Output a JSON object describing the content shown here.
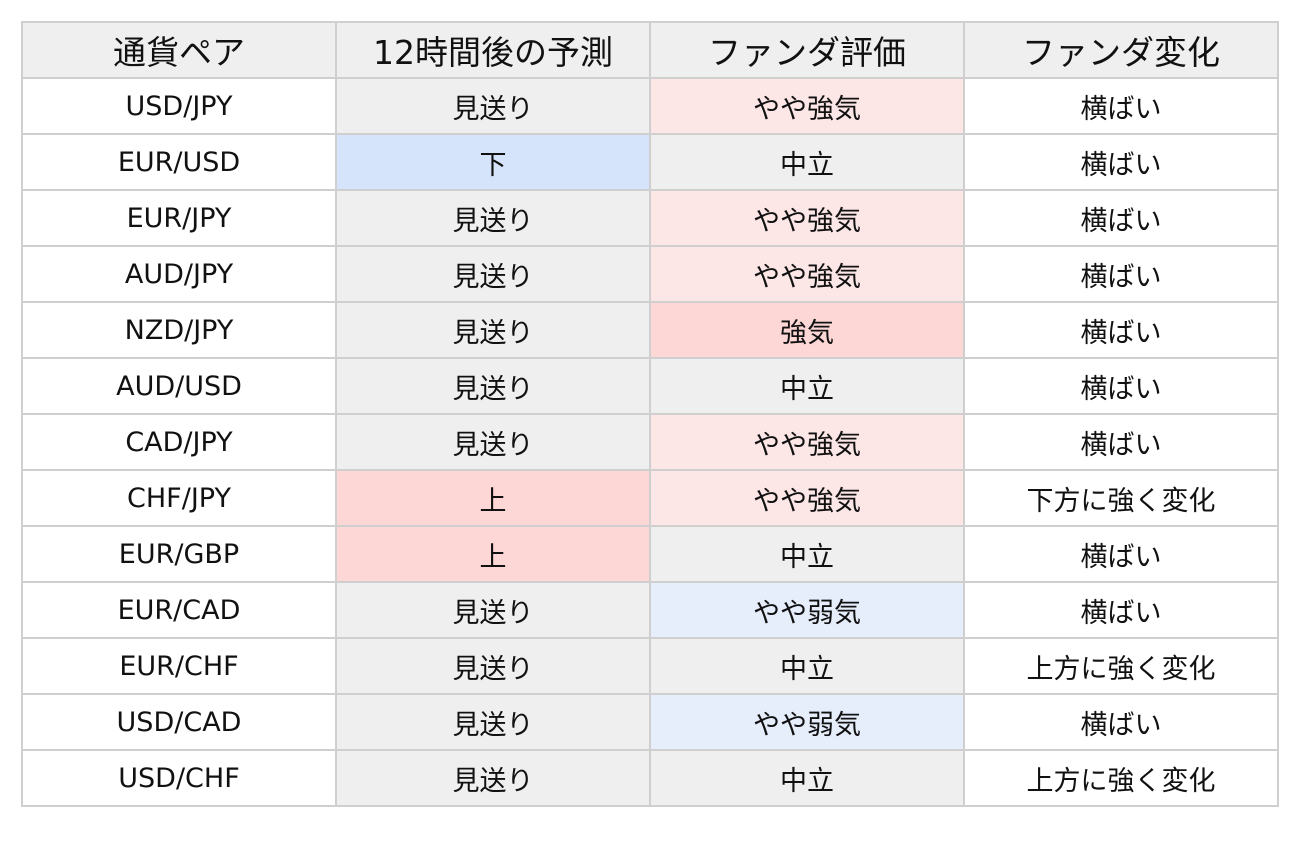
{
  "headers": [
    "通貨ペア",
    "12時間後の予測",
    "ファンダ評価",
    "ファンダ変化"
  ],
  "colors": {
    "header_bg": "#efefef",
    "pair_bg": "#ffffff",
    "change_bg": "#ffffff",
    "neutral_bg": "#efefef",
    "forecast": {
      "上": "#fdd6d6",
      "下": "#d6e4fb",
      "見送り": "#efefef"
    },
    "fundamental": {
      "強気": "#fdd6d6",
      "やや強気": "#fde6e6",
      "中立": "#efefef",
      "やや弱気": "#e6eefb"
    }
  },
  "rows": [
    {
      "pair": "USD/JPY",
      "forecast": "見送り",
      "fundamental": "やや強気",
      "change": "横ばい"
    },
    {
      "pair": "EUR/USD",
      "forecast": "下",
      "fundamental": "中立",
      "change": "横ばい"
    },
    {
      "pair": "EUR/JPY",
      "forecast": "見送り",
      "fundamental": "やや強気",
      "change": "横ばい"
    },
    {
      "pair": "AUD/JPY",
      "forecast": "見送り",
      "fundamental": "やや強気",
      "change": "横ばい"
    },
    {
      "pair": "NZD/JPY",
      "forecast": "見送り",
      "fundamental": "強気",
      "change": "横ばい"
    },
    {
      "pair": "AUD/USD",
      "forecast": "見送り",
      "fundamental": "中立",
      "change": "横ばい"
    },
    {
      "pair": "CAD/JPY",
      "forecast": "見送り",
      "fundamental": "やや強気",
      "change": "横ばい"
    },
    {
      "pair": "CHF/JPY",
      "forecast": "上",
      "fundamental": "やや強気",
      "change": "下方に強く変化"
    },
    {
      "pair": "EUR/GBP",
      "forecast": "上",
      "fundamental": "中立",
      "change": "横ばい"
    },
    {
      "pair": "EUR/CAD",
      "forecast": "見送り",
      "fundamental": "やや弱気",
      "change": "横ばい"
    },
    {
      "pair": "EUR/CHF",
      "forecast": "見送り",
      "fundamental": "中立",
      "change": "上方に強く変化"
    },
    {
      "pair": "USD/CAD",
      "forecast": "見送り",
      "fundamental": "やや弱気",
      "change": "横ばい"
    },
    {
      "pair": "USD/CHF",
      "forecast": "見送り",
      "fundamental": "中立",
      "change": "上方に強く変化"
    }
  ]
}
